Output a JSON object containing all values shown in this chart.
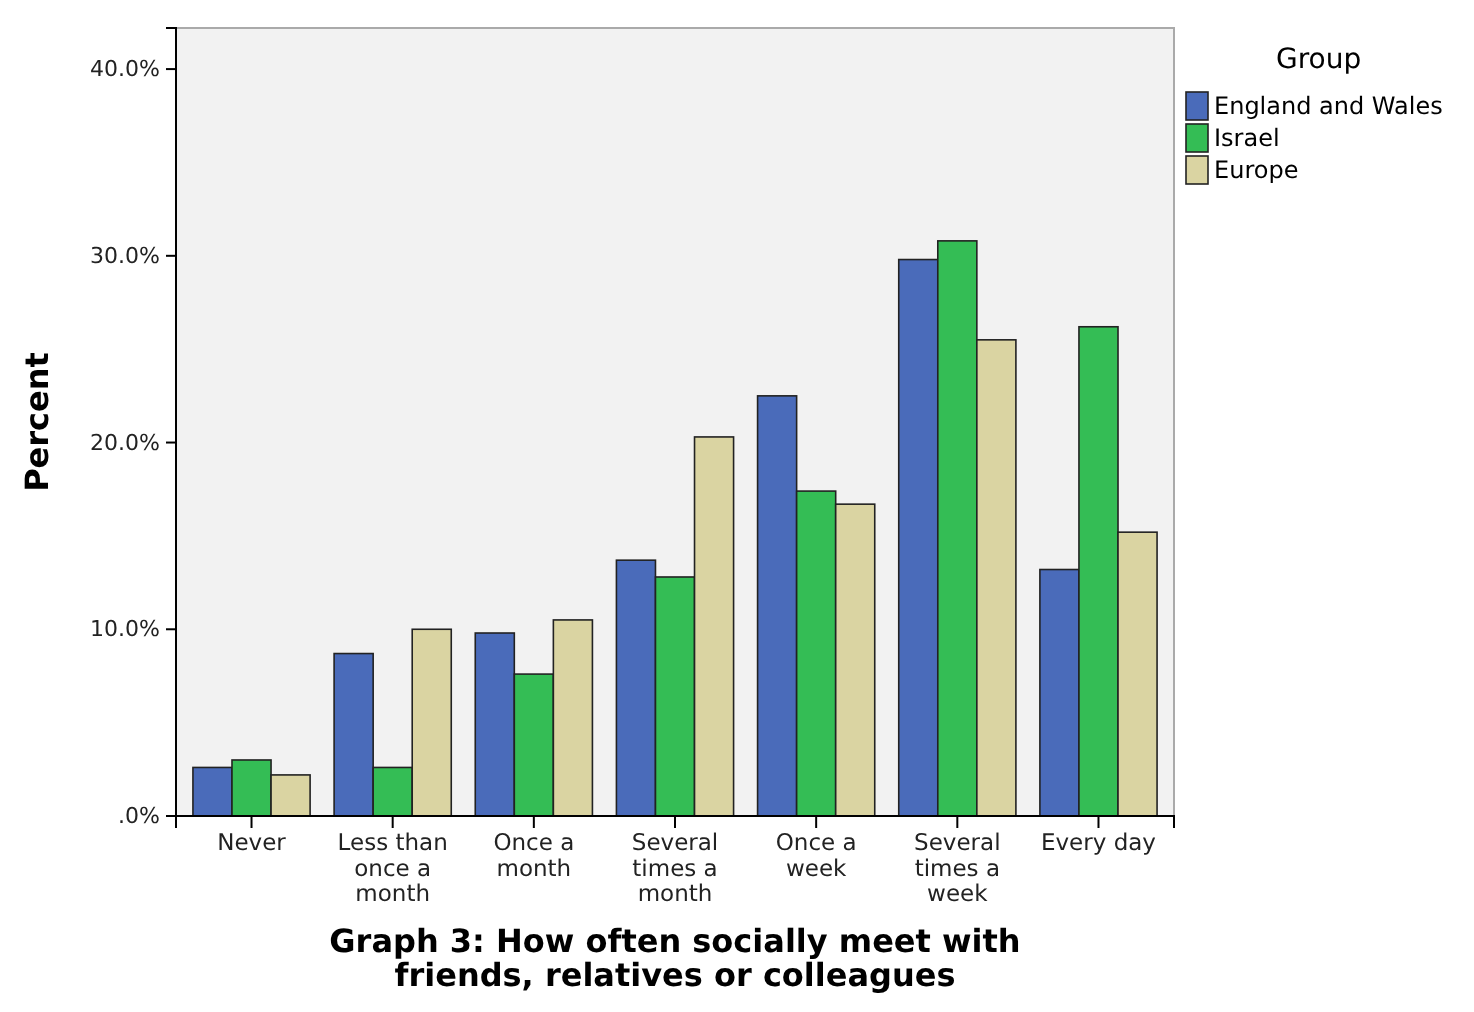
{
  "chart_data": {
    "type": "bar",
    "title": "Graph 3: How often socially meet with friends, relatives or colleagues",
    "ylabel": "Percent",
    "legend_title": "Group",
    "legend": "right",
    "categories": [
      "Never",
      "Less than once a month",
      "Once a month",
      "Several times a month",
      "Once a week",
      "Several times a week",
      "Every day"
    ],
    "series": [
      {
        "name": "England and Wales",
        "color": "#4a6bba",
        "values": [
          2.6,
          8.7,
          9.8,
          13.7,
          22.5,
          29.8,
          13.2
        ]
      },
      {
        "name": "Israel",
        "color": "#34bd55",
        "values": [
          3.0,
          2.6,
          7.6,
          12.8,
          17.4,
          30.8,
          26.2
        ]
      },
      {
        "name": "Europe",
        "color": "#dad4a2",
        "values": [
          2.2,
          10.0,
          10.5,
          20.3,
          16.7,
          25.5,
          15.2
        ]
      }
    ],
    "ylim": [
      0,
      42.2
    ],
    "yticks": [
      {
        "value": 0,
        "label": ".0%"
      },
      {
        "value": 10,
        "label": "10.0%"
      },
      {
        "value": 20,
        "label": "20.0%"
      },
      {
        "value": 30,
        "label": "30.0%"
      },
      {
        "value": 40,
        "label": "40.0%"
      }
    ]
  }
}
